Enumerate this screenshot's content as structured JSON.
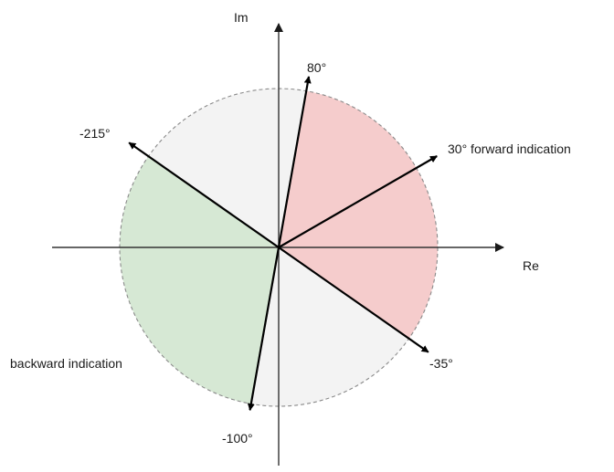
{
  "axes": {
    "real": "Re",
    "imaginary": "Im"
  },
  "regions": [
    {
      "id": "forward",
      "from_deg": -35,
      "to_deg": 80,
      "color": "#f5cccc"
    },
    {
      "id": "neutral-upper",
      "from_deg": 80,
      "to_deg": 145,
      "color": "#f3f3f3"
    },
    {
      "id": "backward",
      "from_deg": 145,
      "to_deg": 260,
      "color": "#d6e8d4"
    },
    {
      "id": "neutral-lower",
      "from_deg": 260,
      "to_deg": 325,
      "color": "#f3f3f3"
    }
  ],
  "vectors": [
    {
      "angle_deg": 80,
      "label": "80°"
    },
    {
      "angle_deg": 30,
      "label": "30° forward indication"
    },
    {
      "angle_deg": -215,
      "label": "-215°"
    },
    {
      "angle_deg": -35,
      "label": "-35°"
    },
    {
      "angle_deg": -100,
      "label": "-100°"
    }
  ],
  "annotations": {
    "backward": "backward indication"
  },
  "colors": {
    "forward_region": "#f5cccc",
    "backward_region": "#d6e8d4",
    "neutral_region": "#f3f3f3",
    "vector": "#000000",
    "axis": "#333333"
  }
}
